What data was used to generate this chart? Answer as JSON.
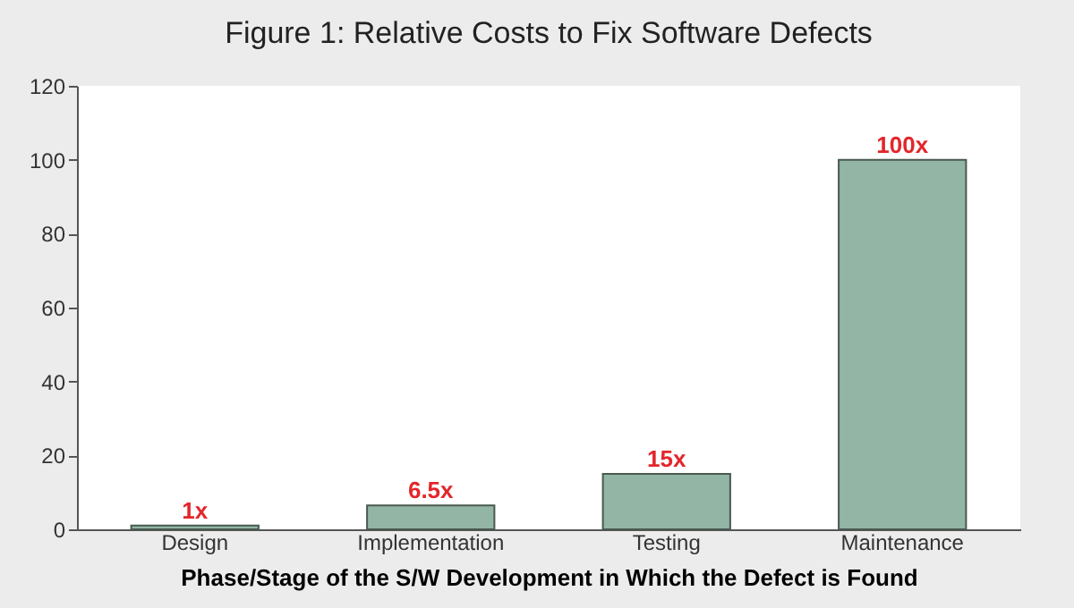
{
  "chart_data": {
    "type": "bar",
    "title": "Figure 1: Relative Costs to Fix Software Defects",
    "xlabel": "Phase/Stage of the S/W Development in Which the Defect is Found",
    "categories": [
      "Design",
      "Implementation",
      "Testing",
      "Maintenance"
    ],
    "values": [
      1,
      6.5,
      15,
      100
    ],
    "value_labels": [
      "1x",
      "6.5x",
      "15x",
      "100x"
    ],
    "color": "#93b5a5",
    "ylim": [
      0,
      120
    ],
    "yticks": [
      0,
      20,
      40,
      60,
      80,
      100,
      120
    ],
    "grid": false
  }
}
